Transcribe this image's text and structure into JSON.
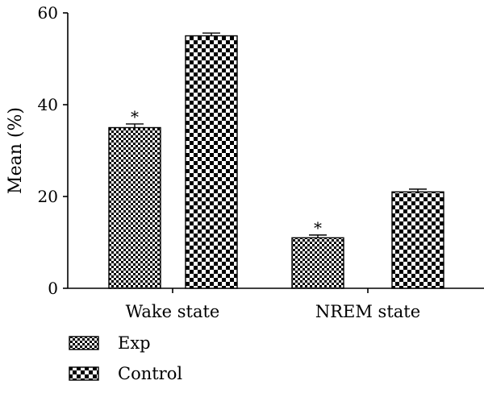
{
  "chart_data": {
    "type": "bar",
    "title": "",
    "xlabel": "",
    "ylabel": "Mean (%)",
    "ylim": [
      0,
      60
    ],
    "yticks": [
      0,
      20,
      40,
      60
    ],
    "grid": false,
    "legend_position": "bottom-left",
    "categories": [
      "Wake state",
      "NREM state"
    ],
    "series": [
      {
        "name": "Exp",
        "pattern": "fine-checker",
        "values": [
          35,
          11
        ],
        "errors": [
          0.8,
          0.6
        ],
        "annotations": [
          "*",
          "*"
        ]
      },
      {
        "name": "Control",
        "pattern": "coarse-checker",
        "values": [
          55,
          21
        ],
        "errors": [
          0.6,
          0.6
        ],
        "annotations": [
          "",
          ""
        ]
      }
    ],
    "colors": {
      "ink": "#000000",
      "paper": "#ffffff"
    }
  }
}
